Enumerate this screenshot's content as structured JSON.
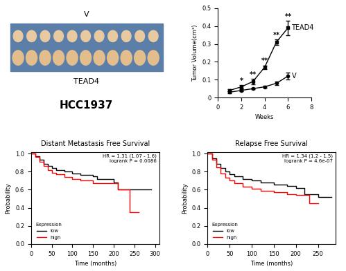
{
  "image": {
    "type": "image",
    "top_label": "V",
    "bottom_label": "TEAD4",
    "caption": "HCC1937"
  },
  "chart_data": [
    {
      "type": "line",
      "x_label": "Weeks",
      "y_label": "Tumor Volume(cm³)",
      "x": [
        1,
        2,
        3,
        4,
        5,
        6
      ],
      "series": [
        {
          "name": "TEAD4",
          "color": "#000000",
          "marker": "square",
          "line_style": "solid",
          "values": [
            0.04,
            0.06,
            0.09,
            0.17,
            0.31,
            0.39
          ],
          "errors": [
            0.005,
            0.01,
            0.015,
            0.01,
            0.015,
            0.04
          ]
        },
        {
          "name": "V",
          "color": "#000000",
          "marker": "circle",
          "line_style": "solid",
          "values": [
            0.03,
            0.04,
            0.05,
            0.06,
            0.08,
            0.12
          ],
          "errors": [
            0.005,
            0.005,
            0.005,
            0.005,
            0.01,
            0.02
          ]
        }
      ],
      "significance": [
        {
          "x": 2,
          "label": "*"
        },
        {
          "x": 3,
          "label": "**"
        },
        {
          "x": 4,
          "label": "**"
        },
        {
          "x": 5,
          "label": "**"
        },
        {
          "x": 6,
          "label": "**"
        }
      ],
      "xlim": [
        0,
        8
      ],
      "xticks": [
        0,
        2,
        4,
        6,
        8
      ],
      "ylim": [
        0,
        0.5
      ],
      "yticks": [
        0,
        0.1,
        0.2,
        0.3,
        0.4,
        0.5
      ]
    },
    {
      "type": "step",
      "title": "Distant Metastasis Free Survival",
      "x_label": "Time (months)",
      "y_label": "Probability",
      "annotations": [
        "HR = 1.31 (1.07 - 1.6)",
        "logrank P = 0.0086"
      ],
      "legend": "lower left",
      "legend_title": "Expression",
      "series": [
        {
          "name": "low",
          "color": "#000000",
          "x": [
            0,
            10,
            20,
            30,
            40,
            50,
            60,
            80,
            100,
            120,
            150,
            160,
            200,
            210,
            250,
            290
          ],
          "values": [
            1.0,
            0.97,
            0.93,
            0.89,
            0.86,
            0.84,
            0.82,
            0.8,
            0.78,
            0.76,
            0.75,
            0.72,
            0.68,
            0.6,
            0.6,
            0.6
          ]
        },
        {
          "name": "high",
          "color": "#ff0000",
          "x": [
            0,
            10,
            20,
            30,
            40,
            50,
            60,
            80,
            100,
            120,
            150,
            170,
            200,
            210,
            230,
            238,
            260
          ],
          "values": [
            1.0,
            0.96,
            0.91,
            0.86,
            0.82,
            0.79,
            0.77,
            0.74,
            0.72,
            0.7,
            0.67,
            0.67,
            0.67,
            0.6,
            0.6,
            0.35,
            0.35
          ]
        }
      ],
      "xlim": [
        0,
        310
      ],
      "xticks": [
        0,
        50,
        100,
        150,
        200,
        250,
        300
      ],
      "ylim": [
        0.0,
        1.02
      ],
      "yticks": [
        0.0,
        0.2,
        0.4,
        0.6,
        0.8,
        1.0
      ]
    },
    {
      "type": "step",
      "title": "Relapse Free Survival",
      "x_label": "Time (months)",
      "y_label": "Probability",
      "annotations": [
        "HR = 1.34 (1.2 - 1.5)",
        "logrank P = 4.6e-07"
      ],
      "legend": "lower left",
      "legend_title": "Expression",
      "series": [
        {
          "name": "low",
          "color": "#000000",
          "x": [
            0,
            10,
            20,
            30,
            40,
            50,
            60,
            80,
            100,
            120,
            150,
            180,
            200,
            220,
            250,
            280
          ],
          "values": [
            1.0,
            0.95,
            0.89,
            0.84,
            0.8,
            0.77,
            0.75,
            0.72,
            0.7,
            0.68,
            0.66,
            0.64,
            0.62,
            0.55,
            0.52,
            0.52
          ]
        },
        {
          "name": "high",
          "color": "#ff0000",
          "x": [
            0,
            10,
            20,
            30,
            40,
            50,
            60,
            80,
            100,
            120,
            150,
            180,
            200,
            220,
            230,
            250
          ],
          "values": [
            1.0,
            0.93,
            0.85,
            0.78,
            0.73,
            0.7,
            0.67,
            0.63,
            0.61,
            0.59,
            0.57,
            0.55,
            0.54,
            0.54,
            0.45,
            0.45
          ]
        }
      ],
      "xlim": [
        0,
        290
      ],
      "xticks": [
        0,
        50,
        100,
        150,
        200,
        250
      ],
      "ylim": [
        0.0,
        1.02
      ],
      "yticks": [
        0.0,
        0.2,
        0.4,
        0.6,
        0.8,
        1.0
      ]
    }
  ]
}
